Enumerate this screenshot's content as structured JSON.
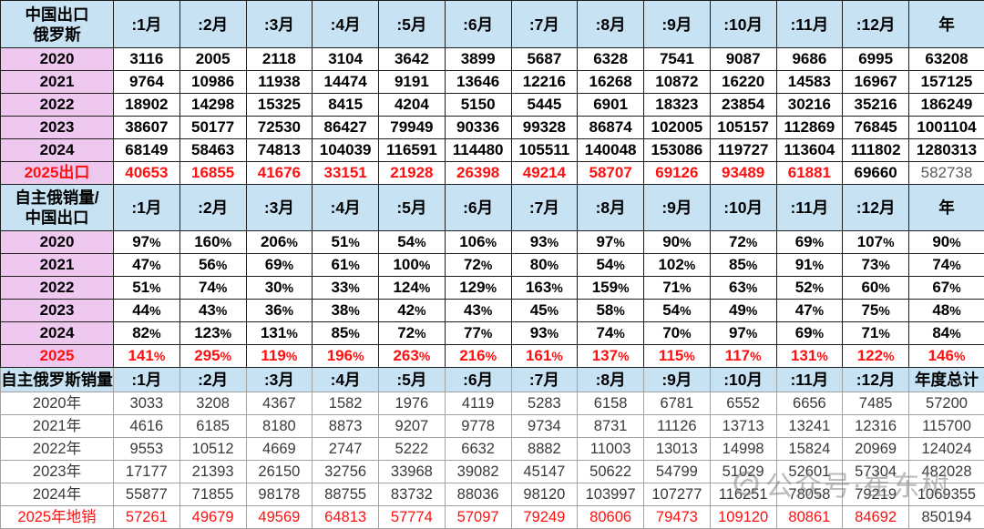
{
  "colors": {
    "header_bg": "#c7e3f3",
    "label_bg": "#efc8ef",
    "accent": "#ff1010",
    "text": "#000000",
    "muted": "#5a5a5a",
    "plain_text": "#3a3a3a"
  },
  "chart_data": [
    {
      "type": "table",
      "header": {
        "label_lines": [
          "中国出口",
          "俄罗斯"
        ],
        "columns": [
          ":1月",
          ":2月",
          ":3月",
          ":4月",
          ":5月",
          ":6月",
          ":7月",
          ":8月",
          ":9月",
          ":10月",
          ":11月",
          ":12月"
        ],
        "total": "年"
      },
      "rows": [
        {
          "label": "2020",
          "values": [
            3116,
            2005,
            2118,
            3104,
            3642,
            3899,
            5687,
            6328,
            7541,
            9087,
            9686,
            6995
          ],
          "total": 63208
        },
        {
          "label": "2021",
          "values": [
            9764,
            10986,
            11938,
            14474,
            9191,
            13646,
            12216,
            16268,
            10872,
            16220,
            14583,
            16967
          ],
          "total": 157125
        },
        {
          "label": "2022",
          "values": [
            18902,
            14298,
            15325,
            8415,
            4204,
            5150,
            5445,
            6901,
            18323,
            23854,
            30216,
            35216
          ],
          "total": 186249
        },
        {
          "label": "2023",
          "values": [
            38607,
            50177,
            72530,
            86427,
            79949,
            90336,
            99328,
            86874,
            102005,
            105157,
            112869,
            76845
          ],
          "total": 1001104
        },
        {
          "label": "2024",
          "values": [
            68149,
            58463,
            74813,
            104039,
            116591,
            114480,
            105511,
            140048,
            153086,
            119727,
            113604,
            111802
          ],
          "total": 1280313
        },
        {
          "label": "2025出口",
          "label_color": "accent",
          "values": [
            40653,
            16855,
            41676,
            33151,
            21928,
            26398,
            49214,
            58707,
            69126,
            93489,
            61881,
            69660
          ],
          "value_colors": [
            "accent",
            "accent",
            "accent",
            "accent",
            "accent",
            "accent",
            "accent",
            "accent",
            "accent",
            "accent",
            "accent",
            "text"
          ],
          "total": 582738,
          "total_color": "muted"
        }
      ]
    },
    {
      "type": "table",
      "header": {
        "label_lines": [
          "自主俄销量/",
          "中国出口"
        ],
        "columns": [
          ":1月",
          ":2月",
          ":3月",
          ":4月",
          ":5月",
          ":6月",
          ":7月",
          ":8月",
          ":9月",
          ":10月",
          ":11月",
          ":12月"
        ],
        "total": "年"
      },
      "rows": [
        {
          "label": "2020",
          "values": [
            "97%",
            "160%",
            "206%",
            "51%",
            "54%",
            "106%",
            "93%",
            "97%",
            "90%",
            "72%",
            "69%",
            "107%"
          ],
          "total": "90%"
        },
        {
          "label": "2021",
          "values": [
            "47%",
            "56%",
            "69%",
            "61%",
            "100%",
            "72%",
            "80%",
            "54%",
            "102%",
            "85%",
            "91%",
            "73%"
          ],
          "total": "74%"
        },
        {
          "label": "2022",
          "values": [
            "51%",
            "74%",
            "30%",
            "33%",
            "124%",
            "129%",
            "163%",
            "159%",
            "71%",
            "63%",
            "52%",
            "60%"
          ],
          "total": "67%"
        },
        {
          "label": "2023",
          "values": [
            "44%",
            "43%",
            "36%",
            "38%",
            "42%",
            "43%",
            "45%",
            "58%",
            "54%",
            "49%",
            "47%",
            "75%"
          ],
          "total": "48%"
        },
        {
          "label": "2024",
          "values": [
            "82%",
            "123%",
            "131%",
            "85%",
            "72%",
            "77%",
            "93%",
            "74%",
            "70%",
            "97%",
            "69%",
            "71%"
          ],
          "total": "84%"
        },
        {
          "label": "2025",
          "label_color": "accent",
          "value_color": "accent",
          "values": [
            "141%",
            "295%",
            "119%",
            "196%",
            "263%",
            "216%",
            "161%",
            "137%",
            "115%",
            "117%",
            "131%",
            "122%"
          ],
          "total": "146%",
          "total_color": "accent"
        }
      ]
    },
    {
      "type": "table",
      "header": {
        "label_lines": [
          "自主俄罗斯销量"
        ],
        "columns": [
          ":1月",
          ":2月",
          ":3月",
          ":4月",
          ":5月",
          ":6月",
          ":7月",
          ":8月",
          ":9月",
          ":10月",
          ":11月",
          ":12月"
        ],
        "total": "年度总计"
      },
      "rows": [
        {
          "label": "2020年",
          "values": [
            3033,
            3208,
            4367,
            1582,
            1976,
            4119,
            5283,
            6158,
            6781,
            6552,
            6656,
            7485
          ],
          "total": 57200
        },
        {
          "label": "2021年",
          "values": [
            4616,
            6185,
            8180,
            8873,
            9207,
            9778,
            9734,
            8731,
            11126,
            13713,
            13241,
            12316
          ],
          "total": 115700
        },
        {
          "label": "2022年",
          "values": [
            9553,
            10512,
            4669,
            2747,
            5222,
            6632,
            8882,
            11003,
            13013,
            14998,
            15824,
            20969
          ],
          "total": 124024
        },
        {
          "label": "2023年",
          "values": [
            17177,
            21393,
            26150,
            32756,
            33968,
            39082,
            45147,
            50622,
            54799,
            51029,
            52601,
            57304
          ],
          "total": 482028
        },
        {
          "label": "2024年",
          "values": [
            55877,
            71855,
            98178,
            88755,
            83732,
            88036,
            98120,
            103997,
            107277,
            116251,
            78058,
            79219
          ],
          "total": 1069355
        },
        {
          "label": "2025年地销",
          "label_color": "accent",
          "value_color": "accent",
          "values": [
            57261,
            49679,
            49569,
            64813,
            57774,
            57097,
            79249,
            80606,
            79473,
            109120,
            80861,
            84692
          ],
          "total": 850194
        }
      ]
    }
  ],
  "watermark": {
    "text": "公众号·崔东树"
  }
}
